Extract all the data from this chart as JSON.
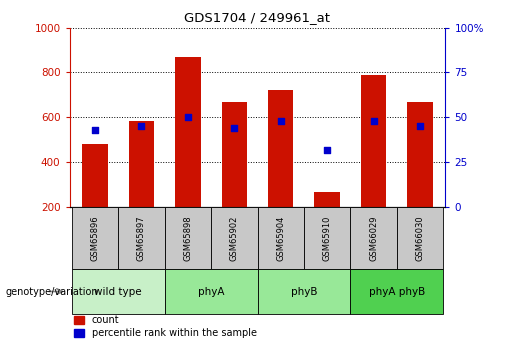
{
  "title": "GDS1704 / 249961_at",
  "samples": [
    "GSM65896",
    "GSM65897",
    "GSM65898",
    "GSM65902",
    "GSM65904",
    "GSM65910",
    "GSM66029",
    "GSM66030"
  ],
  "counts": [
    480,
    585,
    870,
    670,
    720,
    265,
    790,
    670
  ],
  "percentile_ranks": [
    43,
    45,
    50,
    44,
    48,
    32,
    48,
    45
  ],
  "groups": [
    {
      "label": "wild type",
      "indices": [
        0,
        1
      ],
      "color": "#c8f0c8"
    },
    {
      "label": "phyA",
      "indices": [
        2,
        3
      ],
      "color": "#98e898"
    },
    {
      "label": "phyB",
      "indices": [
        4,
        5
      ],
      "color": "#98e898"
    },
    {
      "label": "phyA phyB",
      "indices": [
        6,
        7
      ],
      "color": "#50d050"
    }
  ],
  "bar_color": "#cc1100",
  "dot_color": "#0000cc",
  "ylim_left": [
    200,
    1000
  ],
  "ylim_right": [
    0,
    100
  ],
  "yticks_left": [
    200,
    400,
    600,
    800,
    1000
  ],
  "yticks_right": [
    0,
    25,
    50,
    75,
    100
  ],
  "ytick_labels_right": [
    "0",
    "25",
    "50",
    "75",
    "100%"
  ],
  "bg_color": "#ffffff",
  "tick_label_color_left": "#cc1100",
  "tick_label_color_right": "#0000cc",
  "group_label_row_label": "genotype/variation",
  "legend_count_label": "count",
  "legend_pct_label": "percentile rank within the sample",
  "sample_bg_color": "#c8c8c8"
}
